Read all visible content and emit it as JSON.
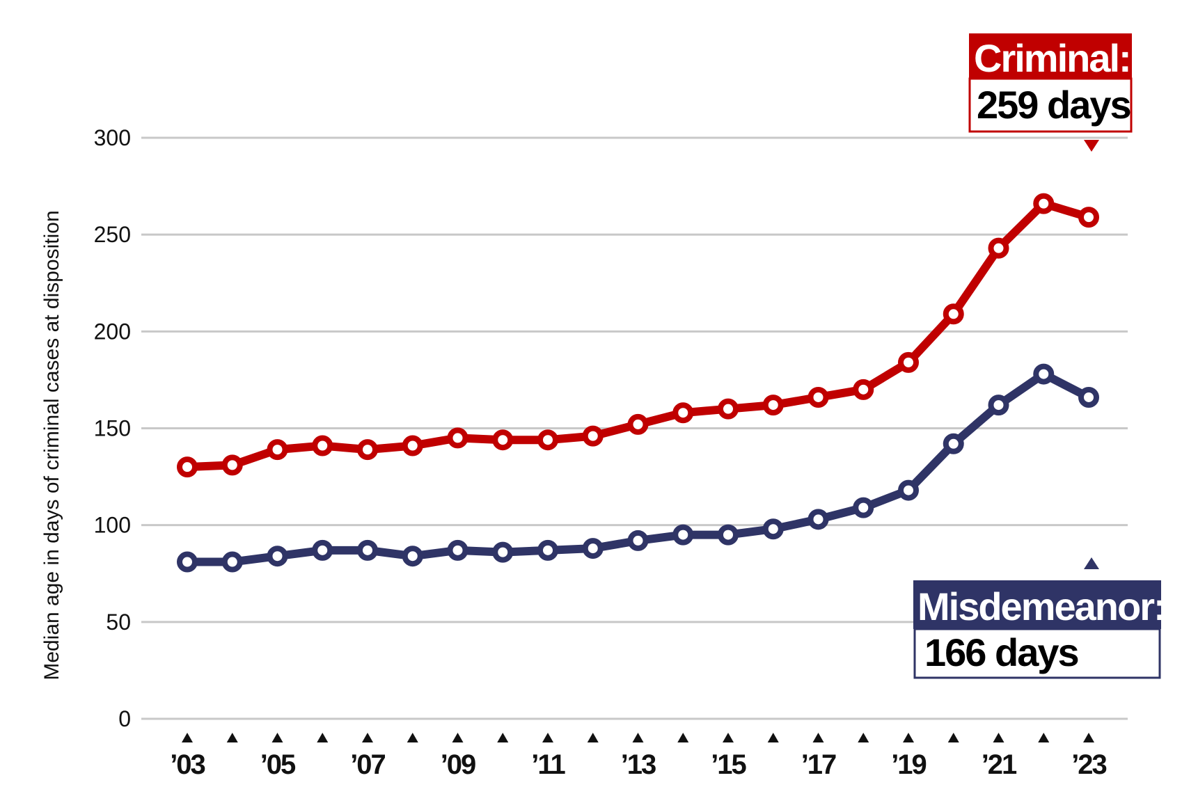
{
  "chart_data": {
    "type": "line",
    "ylabel": "Median age in days of criminal cases at disposition",
    "xlabel": "",
    "ylim": [
      0,
      300
    ],
    "yticks": [
      0,
      50,
      100,
      150,
      200,
      250,
      300
    ],
    "x": [
      2003,
      2004,
      2005,
      2006,
      2007,
      2008,
      2009,
      2010,
      2011,
      2012,
      2013,
      2014,
      2015,
      2016,
      2017,
      2018,
      2019,
      2020,
      2021,
      2022,
      2023
    ],
    "xtick_labels": [
      "’03",
      "’05",
      "’07",
      "’09",
      "’11",
      "’13",
      "’15",
      "’17",
      "’19",
      "’21",
      "’23"
    ],
    "xtick_years": [
      2003,
      2005,
      2007,
      2009,
      2011,
      2013,
      2015,
      2017,
      2019,
      2021,
      2023
    ],
    "grid": true,
    "series": [
      {
        "name": "Criminal",
        "color": "#c00000",
        "values": [
          130,
          131,
          139,
          141,
          139,
          141,
          145,
          144,
          144,
          146,
          152,
          158,
          160,
          162,
          166,
          170,
          184,
          209,
          243,
          266,
          259
        ]
      },
      {
        "name": "Misdemeanor",
        "color": "#2f3466",
        "values": [
          81,
          81,
          84,
          87,
          87,
          84,
          87,
          86,
          87,
          88,
          92,
          95,
          95,
          98,
          103,
          109,
          118,
          142,
          162,
          178,
          166
        ]
      }
    ],
    "annotations": [
      {
        "series": "Criminal",
        "title": "Criminal:",
        "value": "259 days",
        "color": "#c00000"
      },
      {
        "series": "Misdemeanor",
        "title": "Misdemeanor:",
        "value": "166 days",
        "color": "#2f3466"
      }
    ]
  }
}
